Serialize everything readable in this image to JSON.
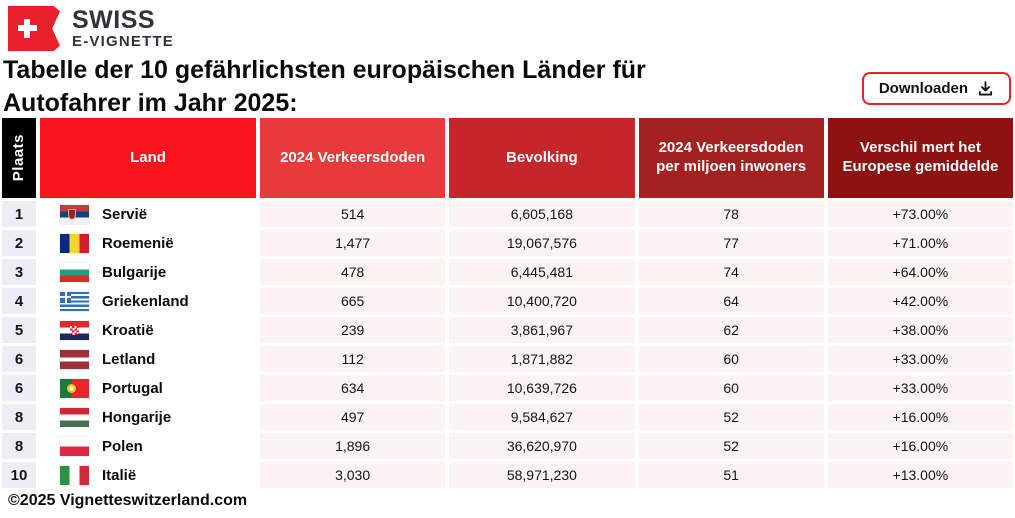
{
  "logo": {
    "line1": "SWISS",
    "line2": "E-VIGNETTE"
  },
  "title": "Tabelle der 10 gefährlichsten europäischen Länder für Autofahrer im Jahr 2025:",
  "download_button": {
    "label": "Downloaden"
  },
  "footer": "©2025 Vignetteswitzerland.com",
  "colors": {
    "brand_red": "#e8202a",
    "header_plaats": "#000000",
    "header_land": "#fa141e",
    "header_verkeersdoden": "#e83a3a",
    "header_bevolking": "#c5262a",
    "header_per_miljoen": "#a42121",
    "header_verschil": "#8d1313",
    "rank_cell_bg": "#ebeef4",
    "data_cell_bg": "#fbf2f2"
  },
  "chart_data": {
    "type": "table",
    "title": "Tabelle der 10 gefährlichsten europäischen Länder für Autofahrer im Jahr 2025:",
    "columns": [
      "Plaats",
      "Land",
      "2024 Verkeersdoden",
      "Bevolking",
      "2024 Verkeersdoden per miljoen inwoners",
      "Verschil mert het Europese gemiddelde"
    ],
    "rows": [
      {
        "plaats": "1",
        "land": "Servië",
        "flag": "serbia",
        "verkeersdoden": "514",
        "bevolking": "6,605,168",
        "per_miljoen": "78",
        "verschil": "+73.00%"
      },
      {
        "plaats": "2",
        "land": "Roemenië",
        "flag": "romania",
        "verkeersdoden": "1,477",
        "bevolking": "19,067,576",
        "per_miljoen": "77",
        "verschil": "+71.00%"
      },
      {
        "plaats": "3",
        "land": "Bulgarije",
        "flag": "bulgaria",
        "verkeersdoden": "478",
        "bevolking": "6,445,481",
        "per_miljoen": "74",
        "verschil": "+64.00%"
      },
      {
        "plaats": "4",
        "land": "Griekenland",
        "flag": "greece",
        "verkeersdoden": "665",
        "bevolking": "10,400,720",
        "per_miljoen": "64",
        "verschil": "+42.00%"
      },
      {
        "plaats": "5",
        "land": "Kroatië",
        "flag": "croatia",
        "verkeersdoden": "239",
        "bevolking": "3,861,967",
        "per_miljoen": "62",
        "verschil": "+38.00%"
      },
      {
        "plaats": "6",
        "land": "Letland",
        "flag": "latvia",
        "verkeersdoden": "112",
        "bevolking": "1,871,882",
        "per_miljoen": "60",
        "verschil": "+33.00%"
      },
      {
        "plaats": "6",
        "land": "Portugal",
        "flag": "portugal",
        "verkeersdoden": "634",
        "bevolking": "10,639,726",
        "per_miljoen": "60",
        "verschil": "+33.00%"
      },
      {
        "plaats": "8",
        "land": "Hongarije",
        "flag": "hungary",
        "verkeersdoden": "497",
        "bevolking": "9,584,627",
        "per_miljoen": "52",
        "verschil": "+16.00%"
      },
      {
        "plaats": "8",
        "land": "Polen",
        "flag": "poland",
        "verkeersdoden": "1,896",
        "bevolking": "36,620,970",
        "per_miljoen": "52",
        "verschil": "+16.00%"
      },
      {
        "plaats": "10",
        "land": "Italië",
        "flag": "italy",
        "verkeersdoden": "3,030",
        "bevolking": "58,971,230",
        "per_miljoen": "51",
        "verschil": "+13.00%"
      }
    ]
  }
}
